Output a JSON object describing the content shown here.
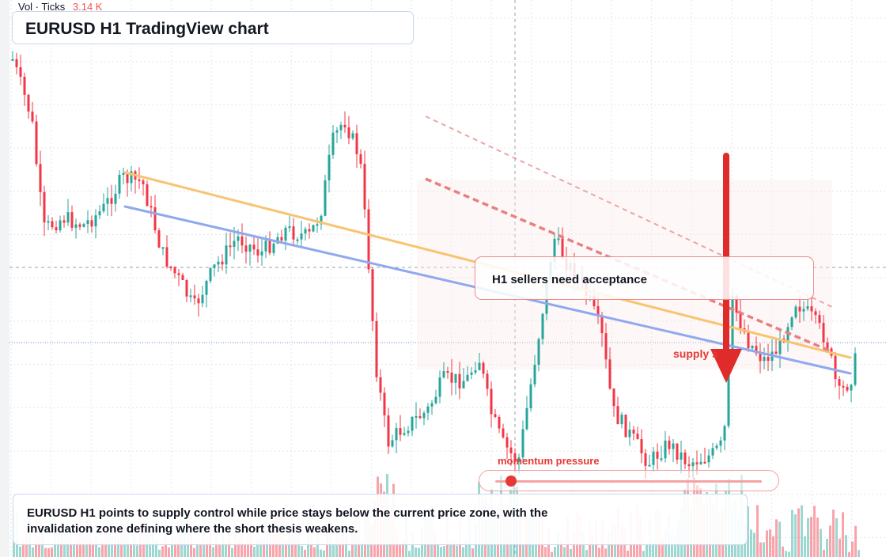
{
  "header": {
    "indicator_name": "Vol · Ticks",
    "indicator_value": "3.14 K",
    "title": "EURUSD H1 TradingView chart"
  },
  "annotations": {
    "thesis_label": "H1 sellers need acceptance",
    "supply_label": "supply s",
    "momentum_label": "momentum pressure",
    "momentum_level": 0.04
  },
  "caption": {
    "text": "EURUSD H1 points to supply control while price stays below the current price zone, with the invalidation zone defining where the short thesis weakens."
  },
  "colors": {
    "bull": "#26a69a",
    "bear": "#f23645",
    "trend_orange": "#f7c472",
    "trend_blue": "#8fa9ee",
    "resistance_dashed": "#e88080",
    "arrow": "#e02b2b"
  }
}
